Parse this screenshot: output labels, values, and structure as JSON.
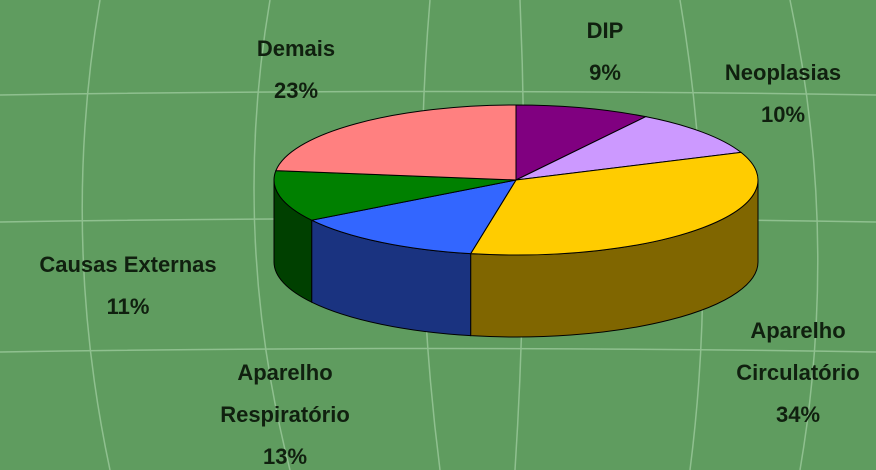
{
  "chart_data": {
    "type": "pie3d",
    "categories": [
      "DIP",
      "Neoplasias",
      "Aparelho Circulatório",
      "Aparelho Respiratório",
      "Causas Externas",
      "Demais"
    ],
    "values": [
      9,
      10,
      34,
      13,
      11,
      23
    ],
    "value_labels": [
      "9%",
      "10%",
      "34%",
      "13%",
      "11%",
      "23%"
    ],
    "colors": [
      "#800080",
      "#cc99ff",
      "#ffcc00",
      "#3366ff",
      "#008000",
      "#ff8080"
    ]
  }
}
